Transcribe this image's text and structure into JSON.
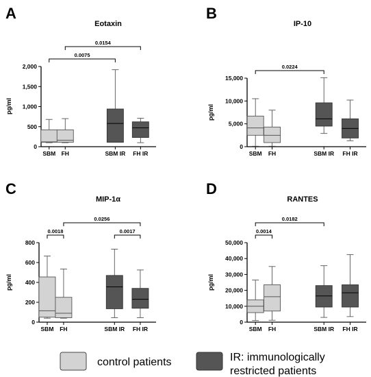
{
  "chart_data": [
    {
      "id": "A",
      "type": "boxplot",
      "panel_letter": "A",
      "title": "Eotaxin",
      "ylabel": "pg/ml",
      "ylim": [
        0,
        2000
      ],
      "yticks": [
        0,
        500,
        1000,
        1500,
        2000
      ],
      "ytick_labels": [
        "0",
        "500",
        "1,000",
        "1,500",
        "2,000"
      ],
      "categories": [
        "SBM",
        "FH",
        "SBM IR",
        "FH IR"
      ],
      "groups": [
        "control",
        "control",
        "ir",
        "ir"
      ],
      "boxes": [
        {
          "min": 100,
          "q1": 110,
          "median": 120,
          "q3": 420,
          "max": 680
        },
        {
          "min": 100,
          "q1": 110,
          "median": 160,
          "q3": 420,
          "max": 700
        },
        {
          "min": 110,
          "q1": 110,
          "median": 580,
          "q3": 940,
          "max": 1920
        },
        {
          "min": 100,
          "q1": 230,
          "median": 470,
          "q3": 620,
          "max": 710
        }
      ],
      "comparisons": [
        {
          "from": 0,
          "to": 2,
          "label": "0.0075",
          "level": 0
        },
        {
          "from": 1,
          "to": 3,
          "label": "0.0154",
          "level": 1
        }
      ]
    },
    {
      "id": "B",
      "type": "boxplot",
      "panel_letter": "B",
      "title": "IP-10",
      "ylabel": "pg/ml",
      "ylim": [
        0,
        15000
      ],
      "yticks": [
        0,
        5000,
        10000,
        15000
      ],
      "ytick_labels": [
        "0",
        "5,000",
        "10,000",
        "15,000"
      ],
      "categories": [
        "SBM",
        "FH",
        "SBM IR",
        "FH IR"
      ],
      "groups": [
        "control",
        "control",
        "ir",
        "ir"
      ],
      "boxes": [
        {
          "min": 100,
          "q1": 2500,
          "median": 4100,
          "q3": 6700,
          "max": 10500
        },
        {
          "min": 100,
          "q1": 900,
          "median": 2500,
          "q3": 4300,
          "max": 8000
        },
        {
          "min": 2900,
          "q1": 4500,
          "median": 6100,
          "q3": 9600,
          "max": 15100
        },
        {
          "min": 1300,
          "q1": 1900,
          "median": 4000,
          "q3": 6100,
          "max": 10200
        }
      ],
      "comparisons": [
        {
          "from": 0,
          "to": 2,
          "label": "0.0224",
          "level": 0
        }
      ]
    },
    {
      "id": "C",
      "type": "boxplot",
      "panel_letter": "C",
      "title": "MIP-1α",
      "ylabel": "pg/ml",
      "ylim": [
        0,
        800
      ],
      "yticks": [
        0,
        200,
        400,
        600,
        800
      ],
      "ytick_labels": [
        "0",
        "200",
        "400",
        "600",
        "800"
      ],
      "categories": [
        "SBM",
        "FH",
        "SBM IR",
        "FH IR"
      ],
      "groups": [
        "control",
        "control",
        "ir",
        "ir"
      ],
      "boxes": [
        {
          "min": 40,
          "q1": 50,
          "median": 115,
          "q3": 455,
          "max": 665
        },
        {
          "min": 40,
          "q1": 45,
          "median": 90,
          "q3": 250,
          "max": 535
        },
        {
          "min": 45,
          "q1": 135,
          "median": 355,
          "q3": 470,
          "max": 735
        },
        {
          "min": 45,
          "q1": 140,
          "median": 230,
          "q3": 340,
          "max": 525
        }
      ],
      "comparisons": [
        {
          "from": 0,
          "to": 1,
          "label": "0.0018",
          "level": 0
        },
        {
          "from": 2,
          "to": 3,
          "label": "0.0017",
          "level": 0
        },
        {
          "from": 1,
          "to": 3,
          "label": "0.0256",
          "level": 1
        }
      ]
    },
    {
      "id": "D",
      "type": "boxplot",
      "panel_letter": "D",
      "title": "RANTES",
      "ylabel": "pg/ml",
      "ylim": [
        0,
        50000
      ],
      "yticks": [
        0,
        10000,
        20000,
        30000,
        40000,
        50000
      ],
      "ytick_labels": [
        "0",
        "10,000",
        "20,000",
        "30,000",
        "40,000",
        "50,000"
      ],
      "categories": [
        "SBM",
        "FH",
        "SBM IR",
        "FH IR"
      ],
      "groups": [
        "control",
        "control",
        "ir",
        "ir"
      ],
      "boxes": [
        {
          "min": 1000,
          "q1": 6000,
          "median": 10000,
          "q3": 14000,
          "max": 26500
        },
        {
          "min": 1200,
          "q1": 7000,
          "median": 16000,
          "q3": 23500,
          "max": 35000
        },
        {
          "min": 3000,
          "q1": 9500,
          "median": 16500,
          "q3": 23000,
          "max": 35500
        },
        {
          "min": 3500,
          "q1": 9500,
          "median": 18500,
          "q3": 23500,
          "max": 42500
        }
      ],
      "comparisons": [
        {
          "from": 0,
          "to": 1,
          "label": "0.0014",
          "level": 0
        },
        {
          "from": 0,
          "to": 2,
          "label": "0.0182",
          "level": 1
        }
      ]
    }
  ],
  "colors": {
    "control": "#d3d3d3",
    "ir": "#555555",
    "median_on_control": "#555555",
    "median_on_ir": "#000000",
    "stroke": "#444444"
  },
  "legend": {
    "control_label": "control patients",
    "ir_label_line1": "IR: immunologically",
    "ir_label_line2": "restricted patients"
  }
}
